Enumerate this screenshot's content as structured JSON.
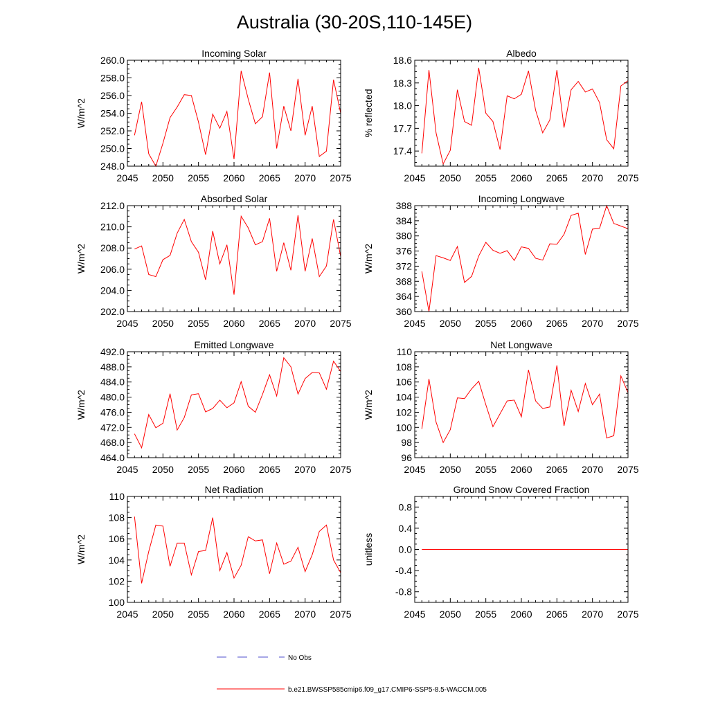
{
  "figure": {
    "title": "Australia (30-20S,110-145E)",
    "legend": [
      {
        "label": "No Obs",
        "color": "#4d4dcc",
        "style": "dashed"
      },
      {
        "label": "b.e21.BWSSP585cmip6.f09_g17.CMIP6-SSP5-8.5-WACCM.005",
        "color": "#ff0000",
        "style": "solid"
      }
    ]
  },
  "chart_data": [
    {
      "type": "line",
      "title": "Incoming Solar",
      "xlabel": "",
      "ylabel": "W/m^2",
      "xlim": [
        2045,
        2075
      ],
      "ylim": [
        248,
        260
      ],
      "yticks": [
        248,
        250,
        252,
        254,
        256,
        258,
        260
      ],
      "ytick_decimals": 1,
      "xticks": [
        2045,
        2050,
        2055,
        2060,
        2065,
        2070,
        2075
      ],
      "series": [
        {
          "name": "b.e21.BWSSP585cmip6.f09_g17.CMIP6-SSP5-8.5-WACCM.005",
          "color": "#ff0000",
          "x": [
            2046,
            2047,
            2048,
            2049,
            2050,
            2051,
            2052,
            2053,
            2054,
            2055,
            2056,
            2057,
            2058,
            2059,
            2060,
            2061,
            2062,
            2063,
            2064,
            2065,
            2066,
            2067,
            2068,
            2069,
            2070,
            2071,
            2072,
            2073,
            2074,
            2075
          ],
          "values": [
            251.5,
            255.3,
            249.4,
            248.0,
            250.6,
            253.5,
            254.7,
            256.1,
            256.0,
            253.0,
            249.3,
            253.9,
            252.3,
            254.2,
            248.8,
            258.8,
            255.6,
            252.8,
            253.6,
            258.6,
            250.0,
            254.8,
            252.0,
            257.9,
            251.5,
            254.8,
            249.1,
            249.7,
            257.8,
            254.0
          ]
        }
      ]
    },
    {
      "type": "line",
      "title": "Albedo",
      "xlabel": "",
      "ylabel": "% reflected",
      "xlim": [
        2045,
        2075
      ],
      "ylim": [
        17.2,
        18.6
      ],
      "yticks": [
        17.4,
        17.7,
        18.0,
        18.3,
        18.6
      ],
      "ytick_decimals": 1,
      "xticks": [
        2045,
        2050,
        2055,
        2060,
        2065,
        2070,
        2075
      ],
      "series": [
        {
          "name": "b.e21.BWSSP585cmip6.f09_g17.CMIP6-SSP5-8.5-WACCM.005",
          "color": "#ff0000",
          "x": [
            2046,
            2047,
            2048,
            2049,
            2050,
            2051,
            2052,
            2053,
            2054,
            2055,
            2056,
            2057,
            2058,
            2059,
            2060,
            2061,
            2062,
            2063,
            2064,
            2065,
            2066,
            2067,
            2068,
            2069,
            2070,
            2071,
            2072,
            2073,
            2074,
            2075
          ],
          "values": [
            17.37,
            18.47,
            17.64,
            17.23,
            17.41,
            18.21,
            17.79,
            17.74,
            18.5,
            17.9,
            17.79,
            17.42,
            18.13,
            18.09,
            18.15,
            18.46,
            17.94,
            17.64,
            17.81,
            18.47,
            17.71,
            18.21,
            18.32,
            18.18,
            18.22,
            18.04,
            17.55,
            17.43,
            18.26,
            18.33
          ]
        }
      ]
    },
    {
      "type": "line",
      "title": "Absorbed Solar",
      "xlabel": "",
      "ylabel": "W/m^2",
      "xlim": [
        2045,
        2075
      ],
      "ylim": [
        202,
        212
      ],
      "yticks": [
        202,
        204,
        206,
        208,
        210,
        212
      ],
      "ytick_decimals": 1,
      "xticks": [
        2045,
        2050,
        2055,
        2060,
        2065,
        2070,
        2075
      ],
      "series": [
        {
          "name": "b.e21.BWSSP585cmip6.f09_g17.CMIP6-SSP5-8.5-WACCM.005",
          "color": "#ff0000",
          "x": [
            2046,
            2047,
            2048,
            2049,
            2050,
            2051,
            2052,
            2053,
            2054,
            2055,
            2056,
            2057,
            2058,
            2059,
            2060,
            2061,
            2062,
            2063,
            2064,
            2065,
            2066,
            2067,
            2068,
            2069,
            2070,
            2071,
            2072,
            2073,
            2074,
            2075
          ],
          "values": [
            207.9,
            208.2,
            205.5,
            205.3,
            206.9,
            207.3,
            209.4,
            210.7,
            208.6,
            207.6,
            205.0,
            209.6,
            206.5,
            208.3,
            203.6,
            211.0,
            209.9,
            208.3,
            208.6,
            210.8,
            205.8,
            208.5,
            205.9,
            211.1,
            205.8,
            208.9,
            205.3,
            206.3,
            210.7,
            207.2
          ]
        }
      ]
    },
    {
      "type": "line",
      "title": "Incoming Longwave",
      "xlabel": "",
      "ylabel": "W/m^2",
      "xlim": [
        2045,
        2075
      ],
      "ylim": [
        360,
        388
      ],
      "yticks": [
        360,
        364,
        368,
        372,
        376,
        380,
        384,
        388
      ],
      "ytick_decimals": 0,
      "xticks": [
        2045,
        2050,
        2055,
        2060,
        2065,
        2070,
        2075
      ],
      "series": [
        {
          "name": "b.e21.BWSSP585cmip6.f09_g17.CMIP6-SSP5-8.5-WACCM.005",
          "color": "#ff0000",
          "x": [
            2046,
            2047,
            2048,
            2049,
            2050,
            2051,
            2052,
            2053,
            2054,
            2055,
            2056,
            2057,
            2058,
            2059,
            2060,
            2061,
            2062,
            2063,
            2064,
            2065,
            2066,
            2067,
            2068,
            2069,
            2070,
            2071,
            2072,
            2073,
            2074,
            2075
          ],
          "values": [
            370.6,
            360.0,
            374.8,
            374.2,
            373.5,
            377.2,
            367.7,
            369.3,
            374.7,
            378.3,
            376.2,
            375.4,
            376.1,
            373.5,
            377.1,
            376.7,
            374.1,
            373.6,
            377.9,
            377.8,
            380.4,
            385.4,
            386.0,
            375.1,
            381.8,
            382.0,
            388.0,
            383.3,
            382.6,
            381.9
          ]
        }
      ]
    },
    {
      "type": "line",
      "title": "Emitted Longwave",
      "xlabel": "",
      "ylabel": "W/m^2",
      "xlim": [
        2045,
        2075
      ],
      "ylim": [
        464,
        492
      ],
      "yticks": [
        464,
        468,
        472,
        476,
        480,
        484,
        488,
        492
      ],
      "ytick_decimals": 1,
      "xticks": [
        2045,
        2050,
        2055,
        2060,
        2065,
        2070,
        2075
      ],
      "series": [
        {
          "name": "b.e21.BWSSP585cmip6.f09_g17.CMIP6-SSP5-8.5-WACCM.005",
          "color": "#ff0000",
          "x": [
            2046,
            2047,
            2048,
            2049,
            2050,
            2051,
            2052,
            2053,
            2054,
            2055,
            2056,
            2057,
            2058,
            2059,
            2060,
            2061,
            2062,
            2063,
            2064,
            2065,
            2066,
            2067,
            2068,
            2069,
            2070,
            2071,
            2072,
            2073,
            2074,
            2075
          ],
          "values": [
            470.3,
            466.6,
            475.4,
            471.9,
            473.1,
            480.9,
            471.3,
            474.6,
            480.6,
            480.9,
            476.1,
            477.0,
            479.2,
            477.2,
            478.5,
            484.1,
            477.6,
            476.0,
            480.7,
            485.9,
            480.3,
            490.4,
            488.0,
            480.8,
            484.9,
            486.5,
            486.4,
            482.1,
            489.5,
            486.8
          ]
        }
      ]
    },
    {
      "type": "line",
      "title": "Net Longwave",
      "xlabel": "",
      "ylabel": "W/m^2",
      "xlim": [
        2045,
        2075
      ],
      "ylim": [
        96,
        110
      ],
      "yticks": [
        96,
        98,
        100,
        102,
        104,
        106,
        108,
        110
      ],
      "ytick_decimals": 0,
      "xticks": [
        2045,
        2050,
        2055,
        2060,
        2065,
        2070,
        2075
      ],
      "series": [
        {
          "name": "b.e21.BWSSP585cmip6.f09_g17.CMIP6-SSP5-8.5-WACCM.005",
          "color": "#ff0000",
          "x": [
            2046,
            2047,
            2048,
            2049,
            2050,
            2051,
            2052,
            2053,
            2054,
            2055,
            2056,
            2057,
            2058,
            2059,
            2060,
            2061,
            2062,
            2063,
            2064,
            2065,
            2066,
            2067,
            2068,
            2069,
            2070,
            2071,
            2072,
            2073,
            2074,
            2075
          ],
          "values": [
            99.8,
            106.4,
            100.7,
            98.0,
            99.7,
            103.9,
            103.8,
            105.1,
            106.1,
            103.0,
            100.1,
            101.8,
            103.5,
            103.6,
            101.4,
            107.6,
            103.5,
            102.5,
            102.7,
            108.2,
            100.2,
            104.9,
            102.1,
            105.8,
            103.0,
            104.4,
            98.6,
            98.9,
            106.8,
            104.6
          ]
        }
      ]
    },
    {
      "type": "line",
      "title": "Net Radiation",
      "xlabel": "",
      "ylabel": "W/m^2",
      "xlim": [
        2045,
        2075
      ],
      "ylim": [
        100,
        110
      ],
      "yticks": [
        100,
        102,
        104,
        106,
        108,
        110
      ],
      "ytick_decimals": 0,
      "xticks": [
        2045,
        2050,
        2055,
        2060,
        2065,
        2070,
        2075
      ],
      "series": [
        {
          "name": "b.e21.BWSSP585cmip6.f09_g17.CMIP6-SSP5-8.5-WACCM.005",
          "color": "#ff0000",
          "x": [
            2046,
            2047,
            2048,
            2049,
            2050,
            2051,
            2052,
            2053,
            2054,
            2055,
            2056,
            2057,
            2058,
            2059,
            2060,
            2061,
            2062,
            2063,
            2064,
            2065,
            2066,
            2067,
            2068,
            2069,
            2070,
            2071,
            2072,
            2073,
            2074,
            2075
          ],
          "values": [
            108.1,
            101.8,
            104.8,
            107.3,
            107.2,
            103.4,
            105.6,
            105.6,
            102.6,
            104.8,
            104.9,
            108.0,
            103.0,
            104.7,
            102.3,
            103.5,
            106.2,
            105.8,
            105.9,
            102.7,
            105.6,
            103.6,
            103.9,
            105.2,
            102.9,
            104.5,
            106.7,
            107.3,
            104.0,
            102.8
          ]
        }
      ]
    },
    {
      "type": "line",
      "title": "Ground Snow Covered Fraction",
      "xlabel": "",
      "ylabel": "unitless",
      "xlim": [
        2045,
        2075
      ],
      "ylim": [
        -1.0,
        1.0
      ],
      "yticks": [
        -0.8,
        -0.4,
        0.0,
        0.4,
        0.8
      ],
      "ytick_decimals": 1,
      "xticks": [
        2045,
        2050,
        2055,
        2060,
        2065,
        2070,
        2075
      ],
      "series": [
        {
          "name": "b.e21.BWSSP585cmip6.f09_g17.CMIP6-SSP5-8.5-WACCM.005",
          "color": "#ff0000",
          "x": [
            2046,
            2047,
            2048,
            2049,
            2050,
            2051,
            2052,
            2053,
            2054,
            2055,
            2056,
            2057,
            2058,
            2059,
            2060,
            2061,
            2062,
            2063,
            2064,
            2065,
            2066,
            2067,
            2068,
            2069,
            2070,
            2071,
            2072,
            2073,
            2074,
            2075
          ],
          "values": [
            0,
            0,
            0,
            0,
            0,
            0,
            0,
            0,
            0,
            0,
            0,
            0,
            0,
            0,
            0,
            0,
            0,
            0,
            0,
            0,
            0,
            0,
            0,
            0,
            0,
            0,
            0,
            0,
            0,
            0
          ]
        }
      ]
    }
  ]
}
